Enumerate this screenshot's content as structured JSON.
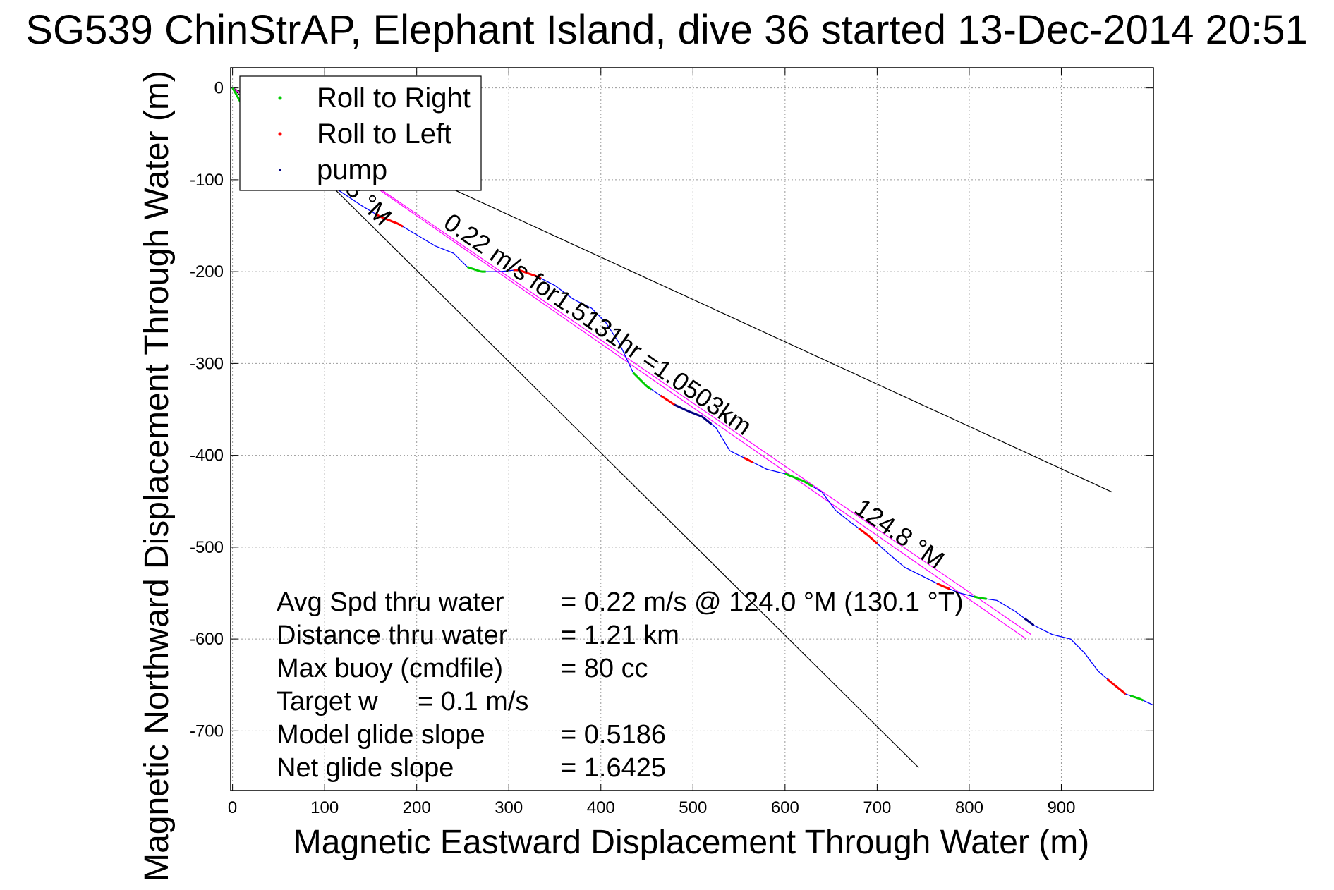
{
  "chart_data": {
    "type": "line",
    "title": "SG539 ChinStrAP, Elephant Island, dive 36 started 13-Dec-2014 20:51",
    "xlabel": "Magnetic Eastward Displacement Through Water (m)",
    "ylabel": "Magnetic Northward Displacement Through Water (m)",
    "xlim": [
      -2,
      1000
    ],
    "ylim": [
      -765,
      22
    ],
    "xticks": [
      0,
      100,
      200,
      300,
      400,
      500,
      600,
      700,
      800,
      900
    ],
    "yticks": [
      0,
      -100,
      -200,
      -300,
      -400,
      -500,
      -600,
      -700
    ],
    "grid": true,
    "legend": {
      "placement": "top-left",
      "entries": [
        {
          "label": "Roll to Right",
          "color": "#00cc00"
        },
        {
          "label": "Roll to Left",
          "color": "#ff0000"
        },
        {
          "label": "pump",
          "color": "#000080"
        }
      ]
    },
    "track": {
      "name": "track",
      "color": "#0000ff",
      "x": [
        0,
        3,
        10,
        20,
        35,
        50,
        65,
        80,
        95,
        110,
        125,
        140,
        160,
        180,
        200,
        220,
        240,
        255,
        270,
        290,
        310,
        330,
        350,
        370,
        390,
        405,
        420,
        435,
        450,
        465,
        480,
        495,
        510,
        525,
        540,
        560,
        580,
        600,
        620,
        640,
        655,
        670,
        690,
        710,
        730,
        750,
        770,
        790,
        810,
        830,
        850,
        870,
        890,
        910,
        925,
        940,
        955,
        970,
        985,
        1000
      ],
      "y": [
        0,
        -5,
        -18,
        -40,
        -60,
        -72,
        -82,
        -92,
        -100,
        -108,
        -118,
        -128,
        -140,
        -148,
        -160,
        -172,
        -180,
        -195,
        -200,
        -200,
        -198,
        -205,
        -215,
        -230,
        -240,
        -255,
        -278,
        -310,
        -325,
        -335,
        -345,
        -352,
        -358,
        -370,
        -395,
        -405,
        -415,
        -420,
        -428,
        -440,
        -460,
        -472,
        -487,
        -505,
        -522,
        -532,
        -542,
        -550,
        -555,
        -558,
        -570,
        -585,
        -595,
        -600,
        -615,
        -635,
        -648,
        -660,
        -665,
        -672
      ]
    },
    "roll_right": [
      [
        0,
        10
      ],
      [
        255,
        275
      ],
      [
        435,
        455
      ],
      [
        600,
        630
      ],
      [
        805,
        820
      ],
      [
        975,
        990
      ]
    ],
    "roll_left": [
      [
        155,
        185
      ],
      [
        305,
        335
      ],
      [
        465,
        485
      ],
      [
        555,
        565
      ],
      [
        680,
        700
      ],
      [
        765,
        780
      ],
      [
        950,
        970
      ]
    ],
    "pump": [
      [
        480,
        520
      ],
      [
        860,
        870
      ]
    ],
    "lines": [
      {
        "name": "glide-line-1",
        "x": [
          0,
          955
        ],
        "y": [
          0,
          -440
        ]
      },
      {
        "name": "glide-line-2",
        "x": [
          0,
          745
        ],
        "y": [
          0,
          -740
        ]
      },
      {
        "name": "avg-line",
        "x": [
          0,
          862
        ],
        "y": [
          0,
          -600
        ],
        "color": "#ff00ff"
      },
      {
        "name": "avg-line-2",
        "x": [
          0,
          867
        ],
        "y": [
          0,
          -595
        ],
        "color": "#ff00ff"
      }
    ],
    "annotations": {
      "avg_heading_label": "124.8 °M",
      "avg_speed_label": "0.22 m/s for1.5131hr =1.0503km",
      "heading_fragment": ".8 °M"
    },
    "stats": [
      {
        "label": "Avg Spd thru water",
        "value": "=  0.22 m/s @ 124.0 °M (130.1 °T)"
      },
      {
        "label": "Distance thru water",
        "value": "=  1.21 km"
      },
      {
        "label": "Max buoy (cmdfile)",
        "value": "= 80 cc"
      },
      {
        "label": "Target w",
        "value": "= 0.1 m/s"
      },
      {
        "label": "Model glide slope",
        "value": "= 0.5186"
      },
      {
        "label": "Net glide slope",
        "value": "= 1.6425"
      }
    ]
  }
}
